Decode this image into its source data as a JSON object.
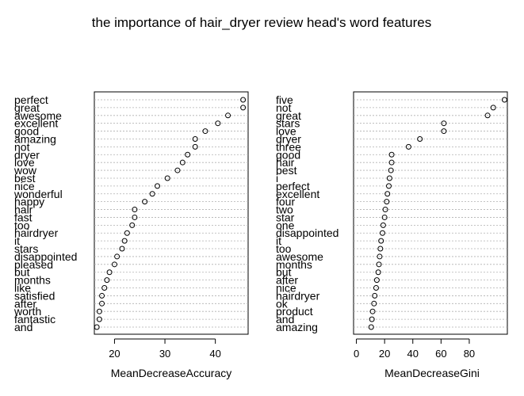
{
  "title": "the importance of hair_dryer review head's word features",
  "chart_data": [
    {
      "type": "scatter",
      "style": "dotchart",
      "xlabel": "MeanDecreaseAccuracy",
      "xlim": [
        16,
        46.5
      ],
      "xticks": [
        20,
        30,
        40
      ],
      "grid": "dotted guide line per row",
      "labels": [
        "perfect",
        "great",
        "awesome",
        "excellent",
        "good",
        "amazing",
        "not",
        "dryer",
        "love",
        "wow",
        "best",
        "nice",
        "wonderful",
        "happy",
        "hair",
        "fast",
        "too",
        "hairdryer",
        "it",
        "stars",
        "disappointed",
        "pleased",
        "but",
        "months",
        "like",
        "satisfied",
        "after",
        "worth",
        "fantastic",
        "and"
      ],
      "values": [
        45.5,
        45.5,
        42.5,
        40.5,
        38,
        36,
        36,
        34.5,
        33.5,
        32.5,
        30.5,
        28.5,
        27.5,
        26,
        24,
        24,
        23.5,
        22.5,
        22,
        21.5,
        20.5,
        20,
        19,
        18.5,
        18,
        17.5,
        17.5,
        17,
        17,
        16.5
      ]
    },
    {
      "type": "scatter",
      "style": "dotchart",
      "xlabel": "MeanDecreaseGini",
      "xlim": [
        -2,
        107
      ],
      "xticks": [
        0,
        20,
        40,
        60,
        80
      ],
      "grid": "dotted guide line per row",
      "labels": [
        "five",
        "not",
        "great",
        "stars",
        "love",
        "dryer",
        "three",
        "good",
        "hair",
        "best",
        "i",
        "perfect",
        "excellent",
        "four",
        "two",
        "star",
        "one",
        "disappointed",
        "it",
        "too",
        "awesome",
        "months",
        "but",
        "after",
        "nice",
        "hairdryer",
        "ok",
        "product",
        "and",
        "amazing"
      ],
      "values": [
        105,
        97,
        93,
        62,
        62,
        45,
        37,
        25,
        25,
        24.5,
        23.5,
        23,
        22,
        21.5,
        20.5,
        20,
        19,
        18.5,
        17.5,
        17,
        16.5,
        16,
        15.5,
        14.5,
        14,
        13,
        12.5,
        11.5,
        11,
        10.5
      ]
    }
  ]
}
